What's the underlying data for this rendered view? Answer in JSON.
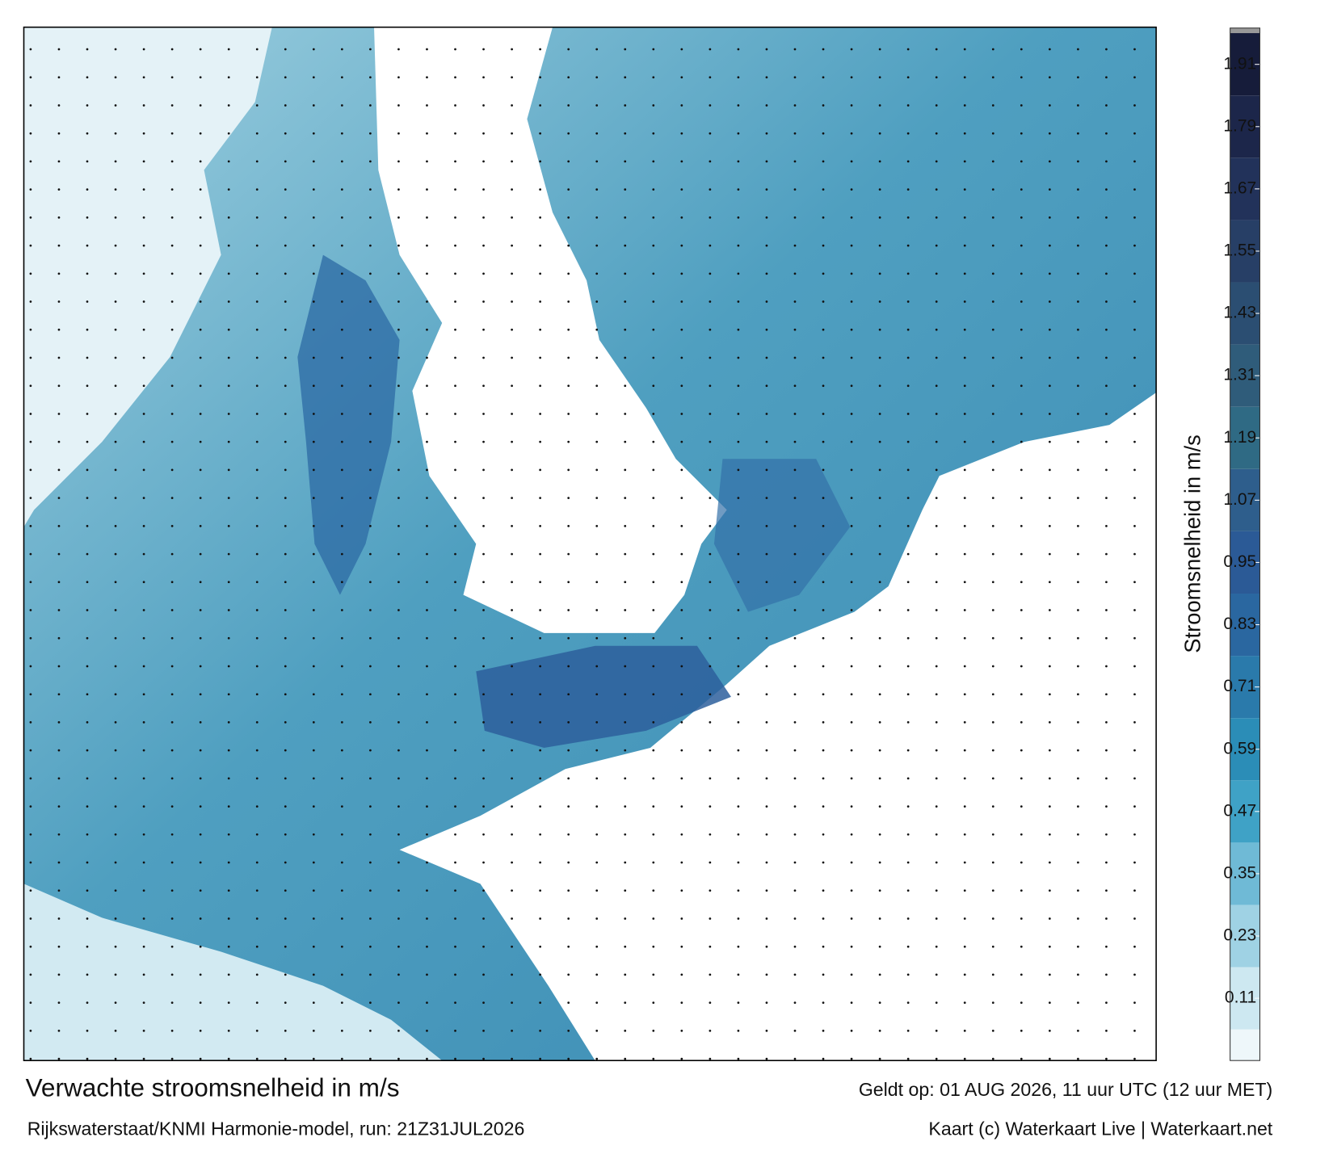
{
  "title": "Verwachte stroomsnelheid in m/s",
  "subtitle": "Rijkswaterstaat/KNMI Harmonie-model, run: 21Z31JUL2026",
  "valid_time": "Geldt op: 01 AUG 2026, 11 uur UTC (12 uur MET)",
  "credit": "Kaart (c) Waterkaart Live | Waterkaart.net",
  "colorbar": {
    "label": "Stroomsnelheid in m/s",
    "ylim": [
      -0.01,
      1.98
    ],
    "yticks": [
      0.11,
      0.23,
      0.35,
      0.47,
      0.59,
      0.71,
      0.83,
      0.95,
      1.07,
      1.19,
      1.31,
      1.43,
      1.55,
      1.67,
      1.79,
      1.91
    ]
  }
}
